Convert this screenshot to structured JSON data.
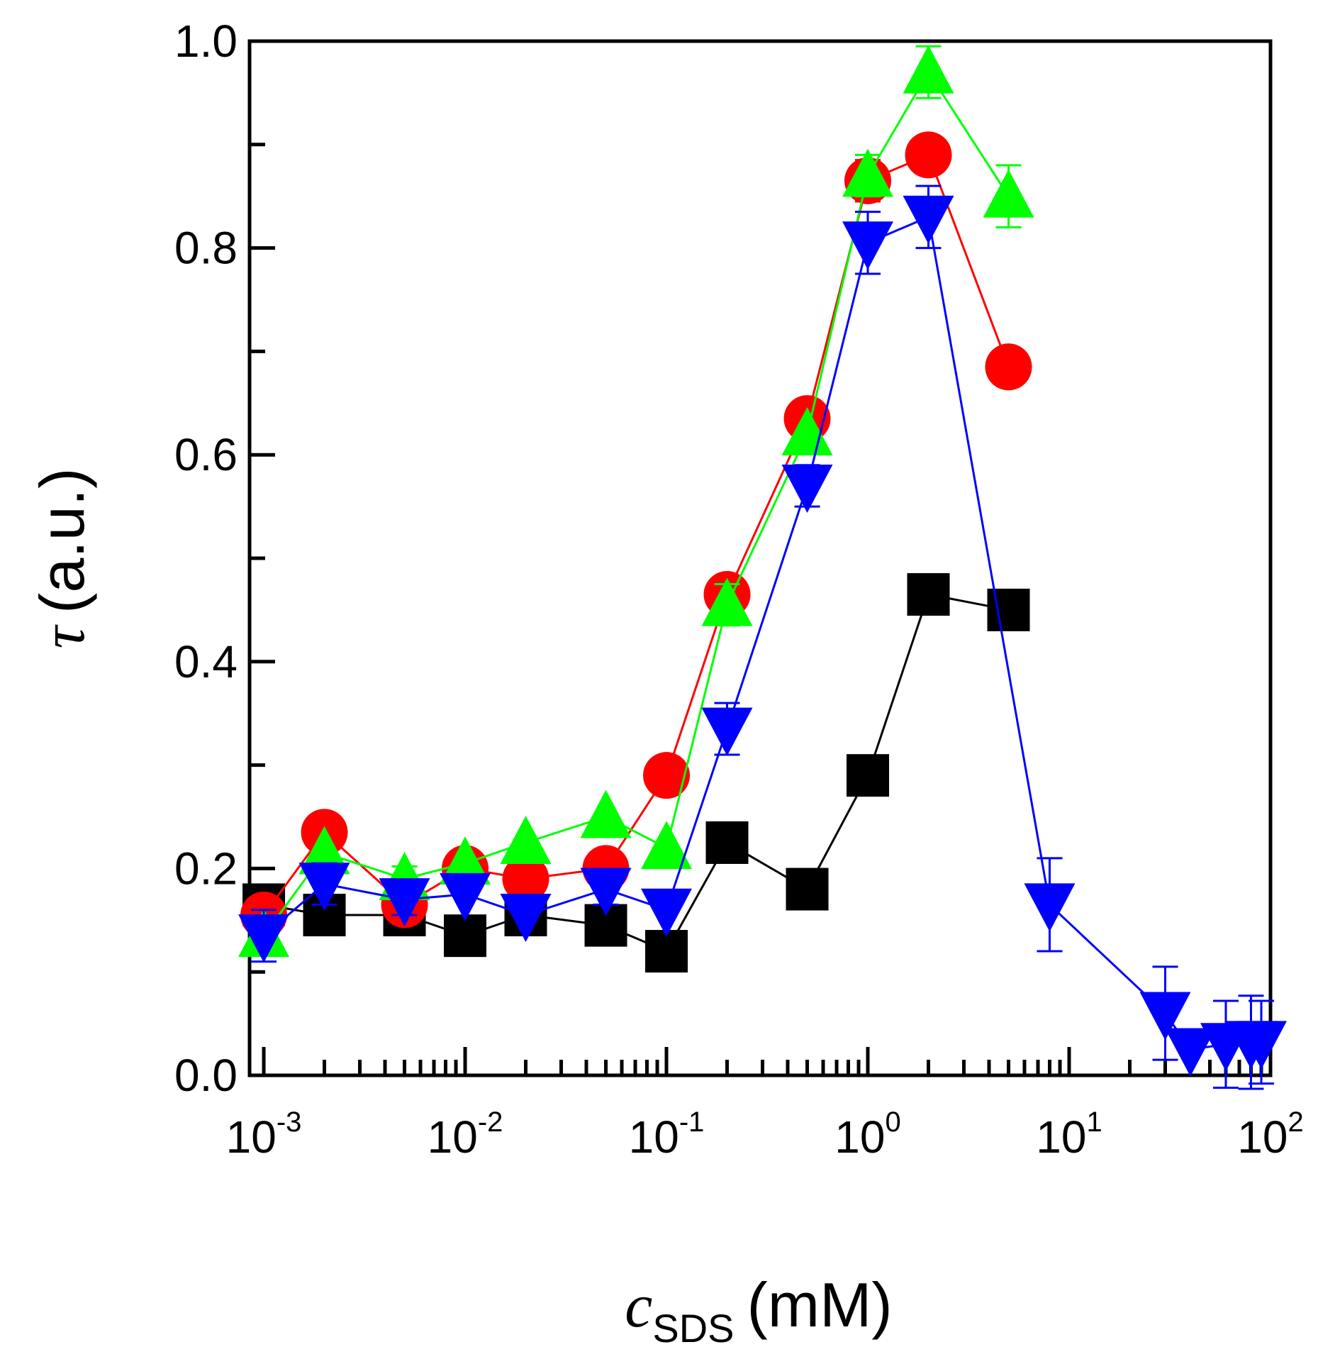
{
  "chart_data": {
    "type": "scatter",
    "title": "",
    "x_scale": "log",
    "xlim": [
      0.00085,
      100
    ],
    "ylim": [
      0.0,
      1.0
    ],
    "xlabel": {
      "var": "c",
      "sub": "SDS",
      "unit": "(mM)"
    },
    "ylabel": {
      "var": "τ",
      "unit": "(a.u.)"
    },
    "x_ticks": [
      {
        "base": "10",
        "exp": "-3",
        "value": 0.001
      },
      {
        "base": "10",
        "exp": "-2",
        "value": 0.01
      },
      {
        "base": "10",
        "exp": "-1",
        "value": 0.1
      },
      {
        "base": "10",
        "exp": "0",
        "value": 1
      },
      {
        "base": "10",
        "exp": "1",
        "value": 10
      },
      {
        "base": "10",
        "exp": "2",
        "value": 100
      }
    ],
    "y_ticks": [
      {
        "label": "0.0",
        "value": 0.0
      },
      {
        "label": "0.2",
        "value": 0.2
      },
      {
        "label": "0.4",
        "value": 0.4
      },
      {
        "label": "0.6",
        "value": 0.6
      },
      {
        "label": "0.8",
        "value": 0.8
      },
      {
        "label": "1.0",
        "value": 1.0
      }
    ],
    "series": [
      {
        "name": "black squares",
        "color": "#000000",
        "marker": "square",
        "x": [
          0.001,
          0.002,
          0.005,
          0.01,
          0.02,
          0.05,
          0.1,
          0.2,
          0.5,
          1,
          2,
          5
        ],
        "y": [
          0.165,
          0.155,
          0.155,
          0.135,
          0.155,
          0.145,
          0.12,
          0.225,
          0.18,
          0.29,
          0.465,
          0.45
        ],
        "err": [
          0.012,
          0.008,
          0.005,
          0.0,
          0.0,
          0.0,
          0.0,
          0.0,
          0.0,
          0.0,
          0.0,
          0.0
        ]
      },
      {
        "name": "red circles",
        "color": "#ff0000",
        "marker": "circle",
        "x": [
          0.001,
          0.002,
          0.005,
          0.01,
          0.02,
          0.05,
          0.1,
          0.2,
          0.5,
          1,
          2,
          5
        ],
        "y": [
          0.155,
          0.235,
          0.165,
          0.2,
          0.19,
          0.2,
          0.29,
          0.465,
          0.635,
          0.865,
          0.89,
          0.685
        ],
        "err": [
          0.012,
          0.012,
          0.0,
          0.0,
          0.0,
          0.0,
          0.0,
          0.015,
          0.015,
          0.02,
          0.0,
          0.0
        ]
      },
      {
        "name": "green up-triangles",
        "color": "#00ff00",
        "marker": "triangle-up",
        "x": [
          0.001,
          0.002,
          0.005,
          0.01,
          0.02,
          0.05,
          0.1,
          0.2,
          0.5,
          1,
          2,
          5
        ],
        "y": [
          0.135,
          0.215,
          0.19,
          0.205,
          0.225,
          0.25,
          0.22,
          0.455,
          0.62,
          0.87,
          0.97,
          0.85
        ],
        "err": [
          0.0,
          0.0,
          0.012,
          0.0,
          0.0,
          0.0,
          0.0,
          0.02,
          0.0,
          0.02,
          0.025,
          0.03
        ]
      },
      {
        "name": "blue down-triangles",
        "color": "#0000ff",
        "marker": "triangle-down",
        "x": [
          0.001,
          0.002,
          0.005,
          0.01,
          0.02,
          0.05,
          0.1,
          0.2,
          0.5,
          1,
          2,
          8,
          30,
          40,
          60,
          80,
          90
        ],
        "y": [
          0.135,
          0.185,
          0.17,
          0.175,
          0.155,
          0.18,
          0.16,
          0.335,
          0.57,
          0.805,
          0.83,
          0.165,
          0.06,
          0.025,
          0.03,
          0.032,
          0.032
        ],
        "err": [
          0.025,
          0.02,
          0.015,
          0.0,
          0.0,
          0.015,
          0.0,
          0.025,
          0.02,
          0.03,
          0.03,
          0.045,
          0.045,
          0.0,
          0.042,
          0.045,
          0.04
        ]
      }
    ]
  }
}
